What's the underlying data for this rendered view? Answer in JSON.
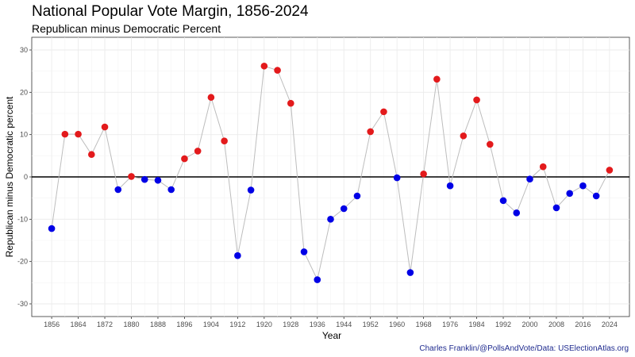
{
  "chart_data": {
    "type": "scatter",
    "title": "National Popular Vote Margin, 1856-2024",
    "subtitle": "Republican minus Democratic Percent",
    "xlabel": "Year",
    "ylabel": "Republican minus Democratic percent",
    "caption": "Charles Franklin/@PollsAndVote/Data: USElectionAtlas.org",
    "xlim": [
      1850,
      2030
    ],
    "ylim": [
      -33,
      33
    ],
    "x_ticks": [
      1856,
      1864,
      1872,
      1880,
      1888,
      1896,
      1904,
      1912,
      1920,
      1928,
      1936,
      1944,
      1952,
      1960,
      1968,
      1976,
      1984,
      1992,
      2000,
      2008,
      2016,
      2024
    ],
    "x_tick_labels": [
      "1856",
      "1864",
      "1872",
      "1880",
      "1888",
      "1896",
      "1904",
      "1912",
      "1920",
      "1928",
      "1936",
      "1944",
      "1952",
      "1960",
      "1968",
      "1976",
      "1984",
      "1992",
      "2000",
      "2008",
      "2016",
      "2024"
    ],
    "y_ticks": [
      -30,
      -20,
      -10,
      0,
      10,
      20,
      30
    ],
    "y_tick_labels": [
      "-30",
      "-20",
      "-10",
      "0",
      "10",
      "20",
      "30"
    ],
    "grid": true,
    "zero_line": true,
    "colors": {
      "positive": "#e31a1c",
      "negative": "#0000e6",
      "line": "#bdbdbd",
      "zero_line": "#000000",
      "panel": "#ffffff",
      "grid": "#ebebeb"
    },
    "x": [
      1856,
      1860,
      1864,
      1868,
      1872,
      1876,
      1880,
      1884,
      1888,
      1892,
      1896,
      1900,
      1904,
      1908,
      1912,
      1916,
      1920,
      1924,
      1928,
      1932,
      1936,
      1940,
      1944,
      1948,
      1952,
      1956,
      1960,
      1964,
      1968,
      1972,
      1976,
      1980,
      1984,
      1988,
      1992,
      1996,
      2000,
      2004,
      2008,
      2012,
      2016,
      2020,
      2024
    ],
    "y": [
      -12.2,
      10.1,
      10.1,
      5.3,
      11.8,
      -3.0,
      0.1,
      -0.6,
      -0.8,
      -3.0,
      4.3,
      6.1,
      18.8,
      8.5,
      -18.6,
      -3.1,
      26.2,
      25.2,
      17.4,
      -17.7,
      -24.3,
      -10.0,
      -7.5,
      -4.5,
      10.7,
      15.4,
      -0.2,
      -22.6,
      0.7,
      23.1,
      -2.1,
      9.7,
      18.2,
      7.7,
      -5.6,
      -8.5,
      -0.5,
      2.4,
      -7.3,
      -3.9,
      -2.1,
      -4.5,
      1.6
    ]
  }
}
